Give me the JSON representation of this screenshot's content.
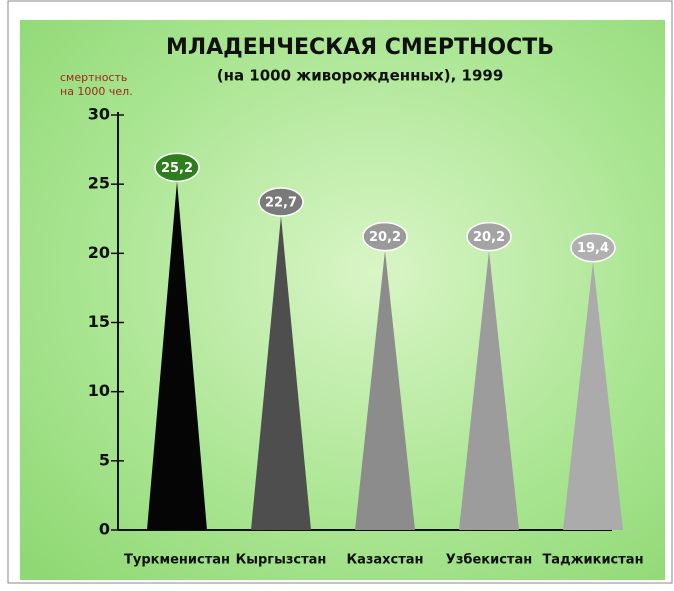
{
  "chart_data": {
    "type": "triangle",
    "title": "МЛАДЕНЧЕСКАЯ СМЕРТНОСТЬ",
    "subtitle": "(на 1000 живорожденных), 1999",
    "y_label": [
      "смертность",
      "на 1000 чел."
    ],
    "categories": [
      "Туркменистан",
      "Кыргызстан",
      "Казахстан",
      "Узбекистан",
      "Таджикистан"
    ],
    "values": [
      25.2,
      22.7,
      20.2,
      20.2,
      19.4
    ],
    "value_labels": [
      "25,2",
      "22,7",
      "20,2",
      "20,2",
      "19,4"
    ],
    "colors": [
      "#050505",
      "#4e4e4e",
      "#8c8c8c",
      "#9c9c9c",
      "#ababab"
    ],
    "label_colors": [
      "#2f7d1f",
      "#7a7a7a",
      "#9a9a9a",
      "#a4a4a4",
      "#b0b0b0"
    ],
    "ylim": [
      0,
      30
    ],
    "yticks": [
      0,
      5,
      10,
      15,
      20,
      25,
      30
    ]
  }
}
